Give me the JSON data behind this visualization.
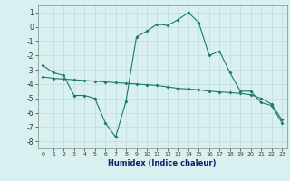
{
  "xlabel": "Humidex (Indice chaleur)",
  "x": [
    0,
    1,
    2,
    3,
    4,
    5,
    6,
    7,
    8,
    9,
    10,
    11,
    12,
    13,
    14,
    15,
    16,
    17,
    18,
    19,
    20,
    21,
    22,
    23
  ],
  "line1": [
    -2.7,
    -3.2,
    -3.4,
    -4.8,
    -4.8,
    -5.0,
    -6.7,
    -7.7,
    -5.2,
    -0.7,
    -0.3,
    0.2,
    0.1,
    0.5,
    1.0,
    0.3,
    -2.0,
    -1.7,
    -3.2,
    -4.5,
    -4.5,
    -5.3,
    -5.5,
    -6.7
  ],
  "line2": [
    -3.5,
    -3.6,
    -3.65,
    -3.7,
    -3.75,
    -3.8,
    -3.85,
    -3.9,
    -3.95,
    -4.0,
    -4.05,
    -4.1,
    -4.2,
    -4.3,
    -4.35,
    -4.4,
    -4.5,
    -4.55,
    -4.6,
    -4.65,
    -4.75,
    -5.0,
    -5.4,
    -6.5
  ],
  "line_color": "#1a7a6a",
  "bg_color": "#d9f0f0",
  "grid_color": "#c0dada",
  "ylim": [
    -8.5,
    1.5
  ],
  "yticks": [
    1,
    0,
    -1,
    -2,
    -3,
    -4,
    -5,
    -6,
    -7,
    -8
  ],
  "xticks": [
    0,
    1,
    2,
    3,
    4,
    5,
    6,
    7,
    8,
    9,
    10,
    11,
    12,
    13,
    14,
    15,
    16,
    17,
    18,
    19,
    20,
    21,
    22,
    23
  ]
}
